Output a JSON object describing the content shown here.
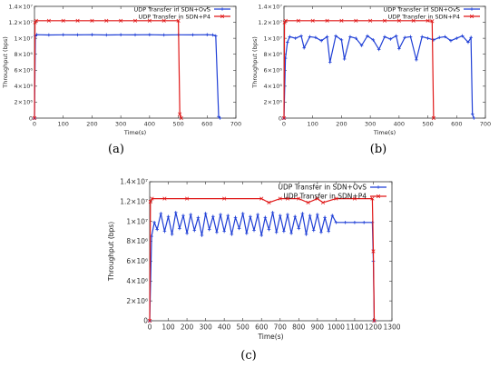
{
  "labels": {
    "a": "(a)",
    "b": "(b)",
    "c": "(c)"
  },
  "chart_data": [
    {
      "type": "line",
      "panel": "(a)",
      "xlabel": "Time(s)",
      "ylabel": "Throughput (bps)",
      "xlim": [
        0,
        700
      ],
      "ylim": [
        0,
        14000000
      ],
      "xticks": [
        0,
        100,
        200,
        300,
        400,
        500,
        600,
        700
      ],
      "xtick_labels": [
        "0",
        "100",
        "200",
        "300",
        "400",
        "500",
        "600",
        "700"
      ],
      "yticks": [
        0,
        2000000,
        4000000,
        6000000,
        8000000,
        10000000,
        12000000,
        14000000
      ],
      "ytick_labels": [
        "0",
        "2×10⁶",
        "4×10⁶",
        "6×10⁶",
        "8×10⁶",
        "1×10⁷",
        "1.2×10⁷",
        "1.4×10⁷"
      ],
      "legend_position": "top-right",
      "series": [
        {
          "name": "UDP Transfer in SDN+OvS",
          "color": "#1f3fd6",
          "marker": "plus",
          "x": [
            0,
            3,
            8,
            50,
            100,
            150,
            200,
            250,
            300,
            350,
            400,
            450,
            500,
            550,
            600,
            620,
            630,
            640,
            645
          ],
          "y": [
            0,
            10300000,
            10450000,
            10420000,
            10440000,
            10430000,
            10450000,
            10420000,
            10440000,
            10430000,
            10450000,
            10420000,
            10440000,
            10430000,
            10450000,
            10420000,
            10300000,
            200000,
            0
          ]
        },
        {
          "name": "UDP Transfer in SDN+P4",
          "color": "#e01818",
          "marker": "cross",
          "x": [
            0,
            2,
            6,
            50,
            100,
            150,
            200,
            250,
            300,
            350,
            400,
            450,
            500,
            505,
            510
          ],
          "y": [
            0,
            12000000,
            12200000,
            12200000,
            12200000,
            12200000,
            12200000,
            12200000,
            12200000,
            12200000,
            12200000,
            12200000,
            12200000,
            500000,
            0
          ]
        }
      ]
    },
    {
      "type": "line",
      "panel": "(b)",
      "xlabel": "Time(s)",
      "ylabel": "Throughput (bps)",
      "xlim": [
        0,
        700
      ],
      "ylim": [
        0,
        14000000
      ],
      "xticks": [
        0,
        100,
        200,
        300,
        400,
        500,
        600,
        700
      ],
      "xtick_labels": [
        "0",
        "100",
        "200",
        "300",
        "400",
        "500",
        "600",
        "700"
      ],
      "yticks": [
        0,
        2000000,
        4000000,
        6000000,
        8000000,
        10000000,
        12000000,
        14000000
      ],
      "ytick_labels": [
        "0",
        "2×10⁶",
        "4×10⁶",
        "6×10⁶",
        "8×10⁶",
        "1×10⁷",
        "1.2×10⁷",
        "1.4×10⁷"
      ],
      "legend_position": "top-right",
      "series": [
        {
          "name": "UDP Transfer in SDN+OvS",
          "color": "#1f3fd6",
          "marker": "plus",
          "x": [
            0,
            5,
            12,
            20,
            40,
            60,
            70,
            90,
            110,
            130,
            150,
            160,
            180,
            200,
            210,
            230,
            250,
            270,
            290,
            310,
            330,
            350,
            370,
            390,
            400,
            420,
            440,
            460,
            480,
            500,
            520,
            540,
            560,
            580,
            600,
            620,
            640,
            650,
            655,
            660
          ],
          "y": [
            0,
            7500000,
            9500000,
            10200000,
            10000000,
            10300000,
            8800000,
            10200000,
            10100000,
            9700000,
            10200000,
            7000000,
            10300000,
            9800000,
            7400000,
            10200000,
            10000000,
            9100000,
            10300000,
            9800000,
            8600000,
            10200000,
            9900000,
            10300000,
            8700000,
            10100000,
            10200000,
            7300000,
            10200000,
            10000000,
            9800000,
            10100000,
            10200000,
            9700000,
            10000000,
            10300000,
            9500000,
            10100000,
            500000,
            0
          ]
        },
        {
          "name": "UDP Transfer in SDN+P4",
          "color": "#e01818",
          "marker": "cross",
          "x": [
            0,
            2,
            6,
            50,
            100,
            150,
            200,
            250,
            300,
            350,
            400,
            450,
            500,
            515,
            520
          ],
          "y": [
            0,
            12000000,
            12200000,
            12200000,
            12200000,
            12200000,
            12200000,
            12200000,
            12200000,
            12200000,
            12200000,
            12200000,
            12200000,
            12150000,
            0
          ]
        }
      ]
    },
    {
      "type": "line",
      "panel": "(c)",
      "xlabel": "Time(s)",
      "ylabel": "Throughput (bps)",
      "xlim": [
        0,
        1300
      ],
      "ylim": [
        0,
        14000000
      ],
      "xticks": [
        0,
        100,
        200,
        300,
        400,
        500,
        600,
        700,
        800,
        900,
        1000,
        1100,
        1200,
        1300
      ],
      "xtick_labels": [
        "0",
        "100",
        "200",
        "300",
        "400",
        "500",
        "600",
        "700",
        "800",
        "900",
        "1000",
        "1100",
        "1200",
        "1300"
      ],
      "yticks": [
        0,
        2000000,
        4000000,
        6000000,
        8000000,
        10000000,
        12000000,
        14000000
      ],
      "ytick_labels": [
        "0",
        "2×10⁶",
        "4×10⁶",
        "6×10⁶",
        "8×10⁶",
        "1×10⁷",
        "1.2×10⁷",
        "1.4×10⁷"
      ],
      "legend_position": "top-right",
      "series": [
        {
          "name": "UDP Transfer in SDN+OvS",
          "color": "#1f3fd6",
          "marker": "plus",
          "x": [
            0,
            10,
            25,
            40,
            60,
            80,
            100,
            120,
            140,
            160,
            180,
            200,
            220,
            240,
            260,
            280,
            300,
            320,
            340,
            360,
            380,
            400,
            420,
            440,
            460,
            480,
            500,
            520,
            540,
            560,
            580,
            600,
            620,
            640,
            660,
            680,
            700,
            720,
            740,
            760,
            780,
            800,
            820,
            840,
            860,
            880,
            900,
            920,
            940,
            960,
            980,
            1000,
            1050,
            1100,
            1150,
            1195,
            1200,
            1205
          ],
          "y": [
            0,
            8500000,
            9900000,
            9200000,
            10800000,
            9000000,
            10500000,
            8700000,
            10900000,
            9300000,
            10600000,
            8800000,
            10700000,
            9100000,
            10400000,
            8600000,
            10800000,
            9200000,
            10500000,
            8900000,
            10700000,
            9000000,
            10600000,
            8700000,
            10400000,
            9300000,
            10800000,
            8800000,
            10500000,
            9100000,
            10700000,
            8600000,
            10400000,
            9200000,
            10900000,
            8900000,
            10600000,
            9000000,
            10700000,
            8800000,
            10500000,
            9300000,
            10800000,
            8700000,
            10600000,
            9100000,
            10700000,
            8900000,
            10400000,
            9000000,
            10600000,
            9900000,
            9900000,
            9900000,
            9900000,
            9900000,
            6000000,
            0
          ]
        },
        {
          "name": "UDP Transfer in SDN+P4",
          "color": "#e01818",
          "marker": "cross",
          "x": [
            0,
            4,
            12,
            80,
            200,
            400,
            600,
            640,
            700,
            740,
            800,
            850,
            900,
            930,
            1000,
            1100,
            1195,
            1200,
            1205
          ],
          "y": [
            0,
            12000000,
            12300000,
            12300000,
            12300000,
            12300000,
            12300000,
            11900000,
            12300000,
            12300000,
            12300000,
            11900000,
            12300000,
            11900000,
            12300000,
            12300000,
            12300000,
            7000000,
            0
          ]
        }
      ]
    }
  ]
}
